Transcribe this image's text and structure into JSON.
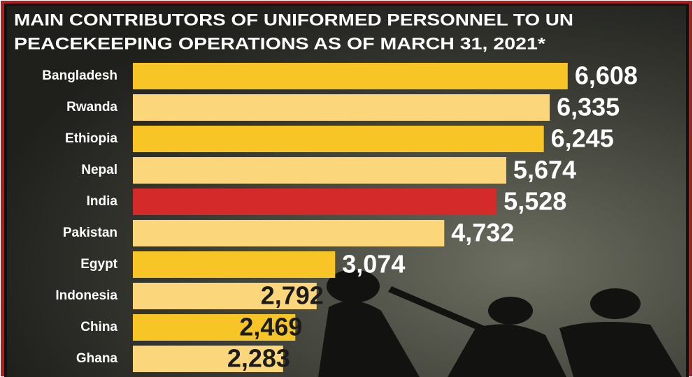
{
  "chart_data": {
    "type": "bar",
    "orientation": "horizontal",
    "title": [
      "MAIN CONTRIBUTORS OF UNIFORMED PERSONNEL TO UN",
      "PEACEKEEPING OPERATIONS AS OF MARCH 31, 2021*"
    ],
    "categories": [
      "Bangladesh",
      "Rwanda",
      "Ethiopia",
      "Nepal",
      "India",
      "Pakistan",
      "Egypt",
      "Indonesia",
      "China",
      "Ghana"
    ],
    "values": [
      6608,
      6335,
      6245,
      5674,
      5528,
      4732,
      3074,
      2792,
      2469,
      2283
    ],
    "value_labels": [
      "6,608",
      "6,335",
      "6,245",
      "5,674",
      "5,528",
      "4,732",
      "3,074",
      "2,792",
      "2,469",
      "2,283"
    ],
    "colors": [
      "#f7c526",
      "#fbd67a",
      "#f7c526",
      "#fbd67a",
      "#d42a2a",
      "#fbd67a",
      "#f7c526",
      "#fbd67a",
      "#f7c526",
      "#fbd67a"
    ],
    "value_label_colors": [
      "#ffffff",
      "#ffffff",
      "#ffffff",
      "#ffffff",
      "#ffffff",
      "#ffffff",
      "#ffffff",
      "#1c1c1c",
      "#1c1c1c",
      "#1c1c1c"
    ]
  }
}
